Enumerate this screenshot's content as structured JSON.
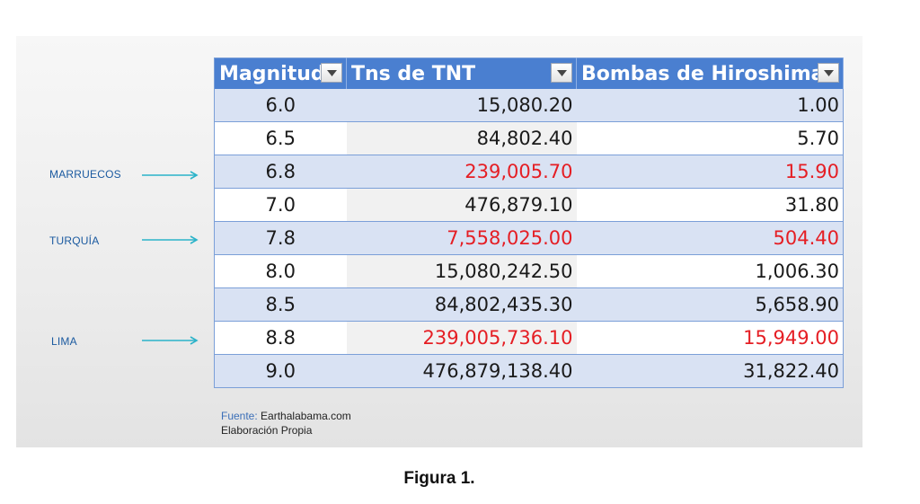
{
  "table": {
    "headers": {
      "magnitude": "Magnitud",
      "tnt": "Tns de TNT",
      "bombs": "Bombas de Hiroshima"
    },
    "filter_icon": "dropdown-arrow",
    "rows": [
      {
        "magnitude": "6.0",
        "tnt": "15,080.20",
        "bombs": "1.00",
        "highlight": false
      },
      {
        "magnitude": "6.5",
        "tnt": "84,802.40",
        "bombs": "5.70",
        "highlight": false
      },
      {
        "magnitude": "6.8",
        "tnt": "239,005.70",
        "bombs": "15.90",
        "highlight": true
      },
      {
        "magnitude": "7.0",
        "tnt": "476,879.10",
        "bombs": "31.80",
        "highlight": false
      },
      {
        "magnitude": "7.8",
        "tnt": "7,558,025.00",
        "bombs": "504.40",
        "highlight": true
      },
      {
        "magnitude": "8.0",
        "tnt": "15,080,242.50",
        "bombs": "1,006.30",
        "highlight": false
      },
      {
        "magnitude": "8.5",
        "tnt": "84,802,435.30",
        "bombs": "5,658.90",
        "highlight": false
      },
      {
        "magnitude": "8.8",
        "tnt": "239,005,736.10",
        "bombs": "15,949.00",
        "highlight": true
      },
      {
        "magnitude": "9.0",
        "tnt": "476,879,138.40",
        "bombs": "31,822.40",
        "highlight": false
      }
    ]
  },
  "annotations": [
    {
      "label": "MARRUECOS",
      "row": 2
    },
    {
      "label": "TURQUÍA",
      "row": 4
    },
    {
      "label": "LIMA",
      "row": 7
    }
  ],
  "source": {
    "key": "Fuente:",
    "value": "Earthalabama.com",
    "note": "Elaboración Propia"
  },
  "caption": "Figura 1.",
  "colors": {
    "header": "#4a7fd0",
    "band": "#d9e2f3",
    "highlight_text": "#e51e24",
    "arrow": "#2bb3c9"
  }
}
